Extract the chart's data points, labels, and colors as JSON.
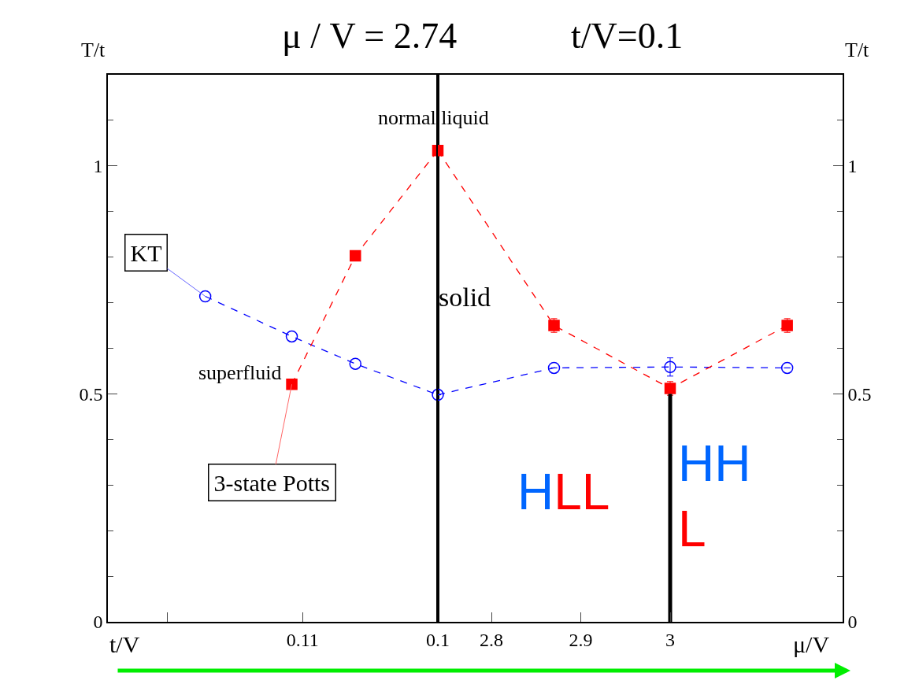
{
  "chart_data": [
    {
      "type": "line",
      "title": "μ / V = 2.74",
      "xlabel": "t/V",
      "ylabel": "T/t",
      "xlim": [
        0.1244,
        0.1
      ],
      "xticks": [
        {
          "value": 0.12,
          "label": null
        },
        0.11,
        0.1
      ],
      "ylim": [
        0,
        1.2
      ],
      "yticks": [
        0,
        0.5,
        1
      ],
      "line_style": "dashed",
      "series": [
        {
          "color": "#0000ff",
          "marker": "circle",
          "x": [
            0.1172,
            0.1108,
            0.1061,
            0.1
          ],
          "values": [
            0.714,
            0.626,
            0.566,
            0.498
          ]
        },
        {
          "color": "#ff0000",
          "marker": "square",
          "x": [
            0.1108,
            0.1061,
            0.1
          ],
          "values": [
            0.521,
            0.803,
            1.034
          ]
        }
      ],
      "annotations": [
        {
          "text": "KT",
          "x": 0.1172,
          "y": 0.714
        },
        {
          "text": "3-state Potts",
          "x": 0.1108,
          "y": 0.521
        },
        "superfluid"
      ]
    },
    {
      "type": "line",
      "title": "t/V=0.1",
      "xlabel": "μ/V",
      "y2label": "T/t",
      "xlim": [
        2.74,
        3.193
      ],
      "xticks": [
        2.8,
        2.9,
        3
      ],
      "y2lim": [
        0,
        1.2
      ],
      "y2ticks": [
        0,
        0.5,
        1
      ],
      "line_style": "dashed",
      "series": [
        {
          "color": "#0000ff",
          "marker": "circle",
          "axis": "y2",
          "x": [
            2.74,
            2.87,
            3.0,
            3.131
          ],
          "values": [
            0.498,
            0.557,
            0.559,
            0.557
          ],
          "errors": [
            null,
            null,
            0.02,
            null
          ]
        },
        {
          "color": "#ff0000",
          "marker": "square",
          "axis": "y2",
          "x": [
            2.74,
            2.87,
            3.0,
            3.131
          ],
          "values": [
            1.034,
            0.65,
            0.512,
            0.65
          ],
          "errors": [
            null,
            0.015,
            0.015,
            0.015
          ]
        },
        {
          "color": "#000000",
          "marker": "none",
          "line_style": "solid",
          "axis": "y2",
          "x": [
            3.0,
            3.0
          ],
          "values": [
            0,
            0.5
          ]
        }
      ],
      "annotations": [
        "normal liquid",
        "solid",
        "HLL",
        "HH\nL"
      ]
    }
  ]
}
